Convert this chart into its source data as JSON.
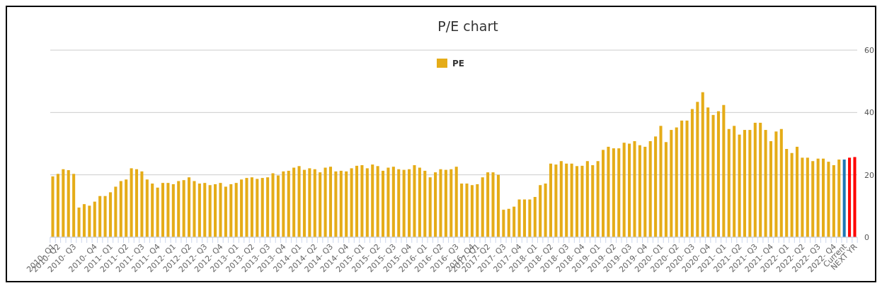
{
  "chart_data": {
    "type": "bar",
    "title": "P/E chart",
    "categories": [
      "2010- Q1",
      "2010- Q2",
      null,
      null,
      "2010- Q3",
      null,
      null,
      null,
      "2010- Q4",
      null,
      null,
      "2011- Q1",
      null,
      null,
      "2011- Q2",
      null,
      null,
      "2011- Q3",
      null,
      null,
      "2011- Q4",
      null,
      null,
      "2012- Q1",
      null,
      null,
      "2012- Q2",
      null,
      null,
      "2012- Q3",
      null,
      null,
      "2012- Q4",
      null,
      null,
      "2013- Q1",
      null,
      null,
      "2013- Q2",
      null,
      null,
      "2013- Q3",
      null,
      null,
      "2013- Q4",
      null,
      null,
      "2014- Q1",
      null,
      null,
      "2014- Q2",
      null,
      null,
      "2014- Q3",
      null,
      null,
      "2014- Q4",
      null,
      null,
      "2015- Q1",
      null,
      null,
      "2015- Q2",
      null,
      null,
      "2015- Q3",
      null,
      null,
      "2015- Q4",
      null,
      null,
      "2016- Q1",
      null,
      null,
      "2016- Q2",
      null,
      null,
      "2016- Q3",
      null,
      null,
      "2016- Q4",
      "2017- Q1",
      null,
      "2017- Q2",
      null,
      null,
      "2017- Q3",
      null,
      null,
      "2017- Q4",
      null,
      null,
      "2018- Q1",
      null,
      null,
      "2018- Q2",
      null,
      null,
      "2018- Q3",
      null,
      null,
      "2018- Q4",
      null,
      null,
      "2019- Q1",
      null,
      null,
      "2019- Q2",
      null,
      null,
      "2019- Q3",
      null,
      null,
      "2019- Q4",
      null,
      null,
      "2020- Q1",
      null,
      null,
      "2020- Q2",
      null,
      null,
      "2020- Q3",
      null,
      null,
      "2020- Q4",
      null,
      null,
      "2021- Q1",
      null,
      null,
      "2021- Q2",
      null,
      null,
      "2021- Q3",
      null,
      null,
      "2021- Q4",
      null,
      null,
      "2022- Q1",
      null,
      null,
      "2022- Q2",
      null,
      null,
      "2022- Q3",
      null,
      null,
      "2022- Q4",
      null,
      "Current",
      null,
      "NEXT YR"
    ],
    "series": [
      {
        "name": "PE",
        "color": "#e5ac18",
        "values": [
          19.5,
          20.3,
          21.8,
          21.5,
          20.3,
          9.5,
          10.6,
          10.1,
          11.4,
          13.2,
          13.2,
          14.4,
          16.2,
          18.0,
          18.5,
          22.1,
          21.8,
          21.1,
          18.5,
          17.2,
          15.9,
          17.4,
          17.4,
          17.0,
          18.0,
          18.3,
          19.2,
          18.0,
          17.2,
          17.4,
          16.7,
          17.0,
          17.4,
          16.2,
          17.0,
          17.4,
          18.5,
          19.0,
          19.2,
          18.7,
          19.0,
          19.2,
          20.5,
          19.8,
          21.1,
          21.3,
          22.3,
          22.8,
          21.6,
          22.1,
          21.8,
          20.8,
          22.3,
          22.6,
          21.1,
          21.3,
          21.1,
          22.1,
          22.9,
          23.1,
          22.1,
          23.3,
          22.8,
          21.3,
          22.3,
          22.6,
          21.8,
          21.6,
          21.8,
          23.1,
          22.3,
          21.3,
          19.2,
          20.8,
          21.8,
          21.6,
          21.8,
          22.6,
          17.2,
          17.2,
          16.7,
          17.0,
          19.2,
          20.8,
          20.8,
          20.0,
          8.8,
          9.1,
          9.8,
          12.1,
          12.1,
          12.1,
          12.9,
          16.7,
          17.2,
          23.6,
          23.3,
          24.4,
          23.6,
          23.6,
          22.8,
          22.9,
          24.4,
          23.1,
          24.4,
          28.0,
          29.0,
          28.5,
          28.5,
          30.3,
          30.0,
          30.8,
          29.5,
          29.0,
          30.8,
          32.3,
          35.7,
          30.5,
          34.4,
          35.2,
          37.4,
          37.4,
          41.1,
          43.4,
          46.5,
          41.6,
          39.2,
          40.4,
          42.4,
          34.7,
          35.7,
          32.9,
          34.4,
          34.4,
          36.7,
          36.7,
          34.4,
          30.8,
          33.9,
          34.7,
          28.3,
          27.0,
          29.0,
          25.5,
          25.5,
          24.4,
          25.2,
          25.2,
          24.2,
          23.1,
          24.9,
          24.9,
          25.5,
          25.7
        ],
        "colors": [
          "#e5ac18",
          "#e5ac18",
          "#e5ac18",
          "#e5ac18",
          "#e5ac18",
          "#e5ac18",
          "#e5ac18",
          "#e5ac18",
          "#e5ac18",
          "#e5ac18",
          "#e5ac18",
          "#e5ac18",
          "#e5ac18",
          "#e5ac18",
          "#e5ac18",
          "#e5ac18",
          "#e5ac18",
          "#e5ac18",
          "#e5ac18",
          "#e5ac18",
          "#e5ac18",
          "#e5ac18",
          "#e5ac18",
          "#e5ac18",
          "#e5ac18",
          "#e5ac18",
          "#e5ac18",
          "#e5ac18",
          "#e5ac18",
          "#e5ac18",
          "#e5ac18",
          "#e5ac18",
          "#e5ac18",
          "#e5ac18",
          "#e5ac18",
          "#e5ac18",
          "#e5ac18",
          "#e5ac18",
          "#e5ac18",
          "#e5ac18",
          "#e5ac18",
          "#e5ac18",
          "#e5ac18",
          "#e5ac18",
          "#e5ac18",
          "#e5ac18",
          "#e5ac18",
          "#e5ac18",
          "#e5ac18",
          "#e5ac18",
          "#e5ac18",
          "#e5ac18",
          "#e5ac18",
          "#e5ac18",
          "#e5ac18",
          "#e5ac18",
          "#e5ac18",
          "#e5ac18",
          "#e5ac18",
          "#e5ac18",
          "#e5ac18",
          "#e5ac18",
          "#e5ac18",
          "#e5ac18",
          "#e5ac18",
          "#e5ac18",
          "#e5ac18",
          "#e5ac18",
          "#e5ac18",
          "#e5ac18",
          "#e5ac18",
          "#e5ac18",
          "#e5ac18",
          "#e5ac18",
          "#e5ac18",
          "#e5ac18",
          "#e5ac18",
          "#e5ac18",
          "#e5ac18",
          "#e5ac18",
          "#e5ac18",
          "#e5ac18",
          "#e5ac18",
          "#e5ac18",
          "#e5ac18",
          "#e5ac18",
          "#e5ac18",
          "#e5ac18",
          "#e5ac18",
          "#e5ac18",
          "#e5ac18",
          "#e5ac18",
          "#e5ac18",
          "#e5ac18",
          "#e5ac18",
          "#e5ac18",
          "#e5ac18",
          "#e5ac18",
          "#e5ac18",
          "#e5ac18",
          "#e5ac18",
          "#e5ac18",
          "#e5ac18",
          "#e5ac18",
          "#e5ac18",
          "#e5ac18",
          "#e5ac18",
          "#e5ac18",
          "#e5ac18",
          "#e5ac18",
          "#e5ac18",
          "#e5ac18",
          "#e5ac18",
          "#e5ac18",
          "#e5ac18",
          "#e5ac18",
          "#e5ac18",
          "#e5ac18",
          "#e5ac18",
          "#e5ac18",
          "#e5ac18",
          "#e5ac18",
          "#e5ac18",
          "#e5ac18",
          "#e5ac18",
          "#e5ac18",
          "#e5ac18",
          "#e5ac18",
          "#e5ac18",
          "#e5ac18",
          "#e5ac18",
          "#e5ac18",
          "#e5ac18",
          "#e5ac18",
          "#e5ac18",
          "#e5ac18",
          "#e5ac18",
          "#e5ac18",
          "#e5ac18",
          "#e5ac18",
          "#e5ac18",
          "#e5ac18",
          "#e5ac18",
          "#e5ac18",
          "#e5ac18",
          "#e5ac18",
          "#e5ac18",
          "#e5ac18",
          "#e5ac18",
          "#e5ac18",
          "#e5ac18",
          "#1f77b4",
          "#ff0000",
          "#ff0000"
        ]
      }
    ],
    "ylim": [
      0,
      60
    ],
    "yticks": [
      0,
      20,
      40,
      60
    ],
    "grid": "y",
    "legend": "top"
  }
}
